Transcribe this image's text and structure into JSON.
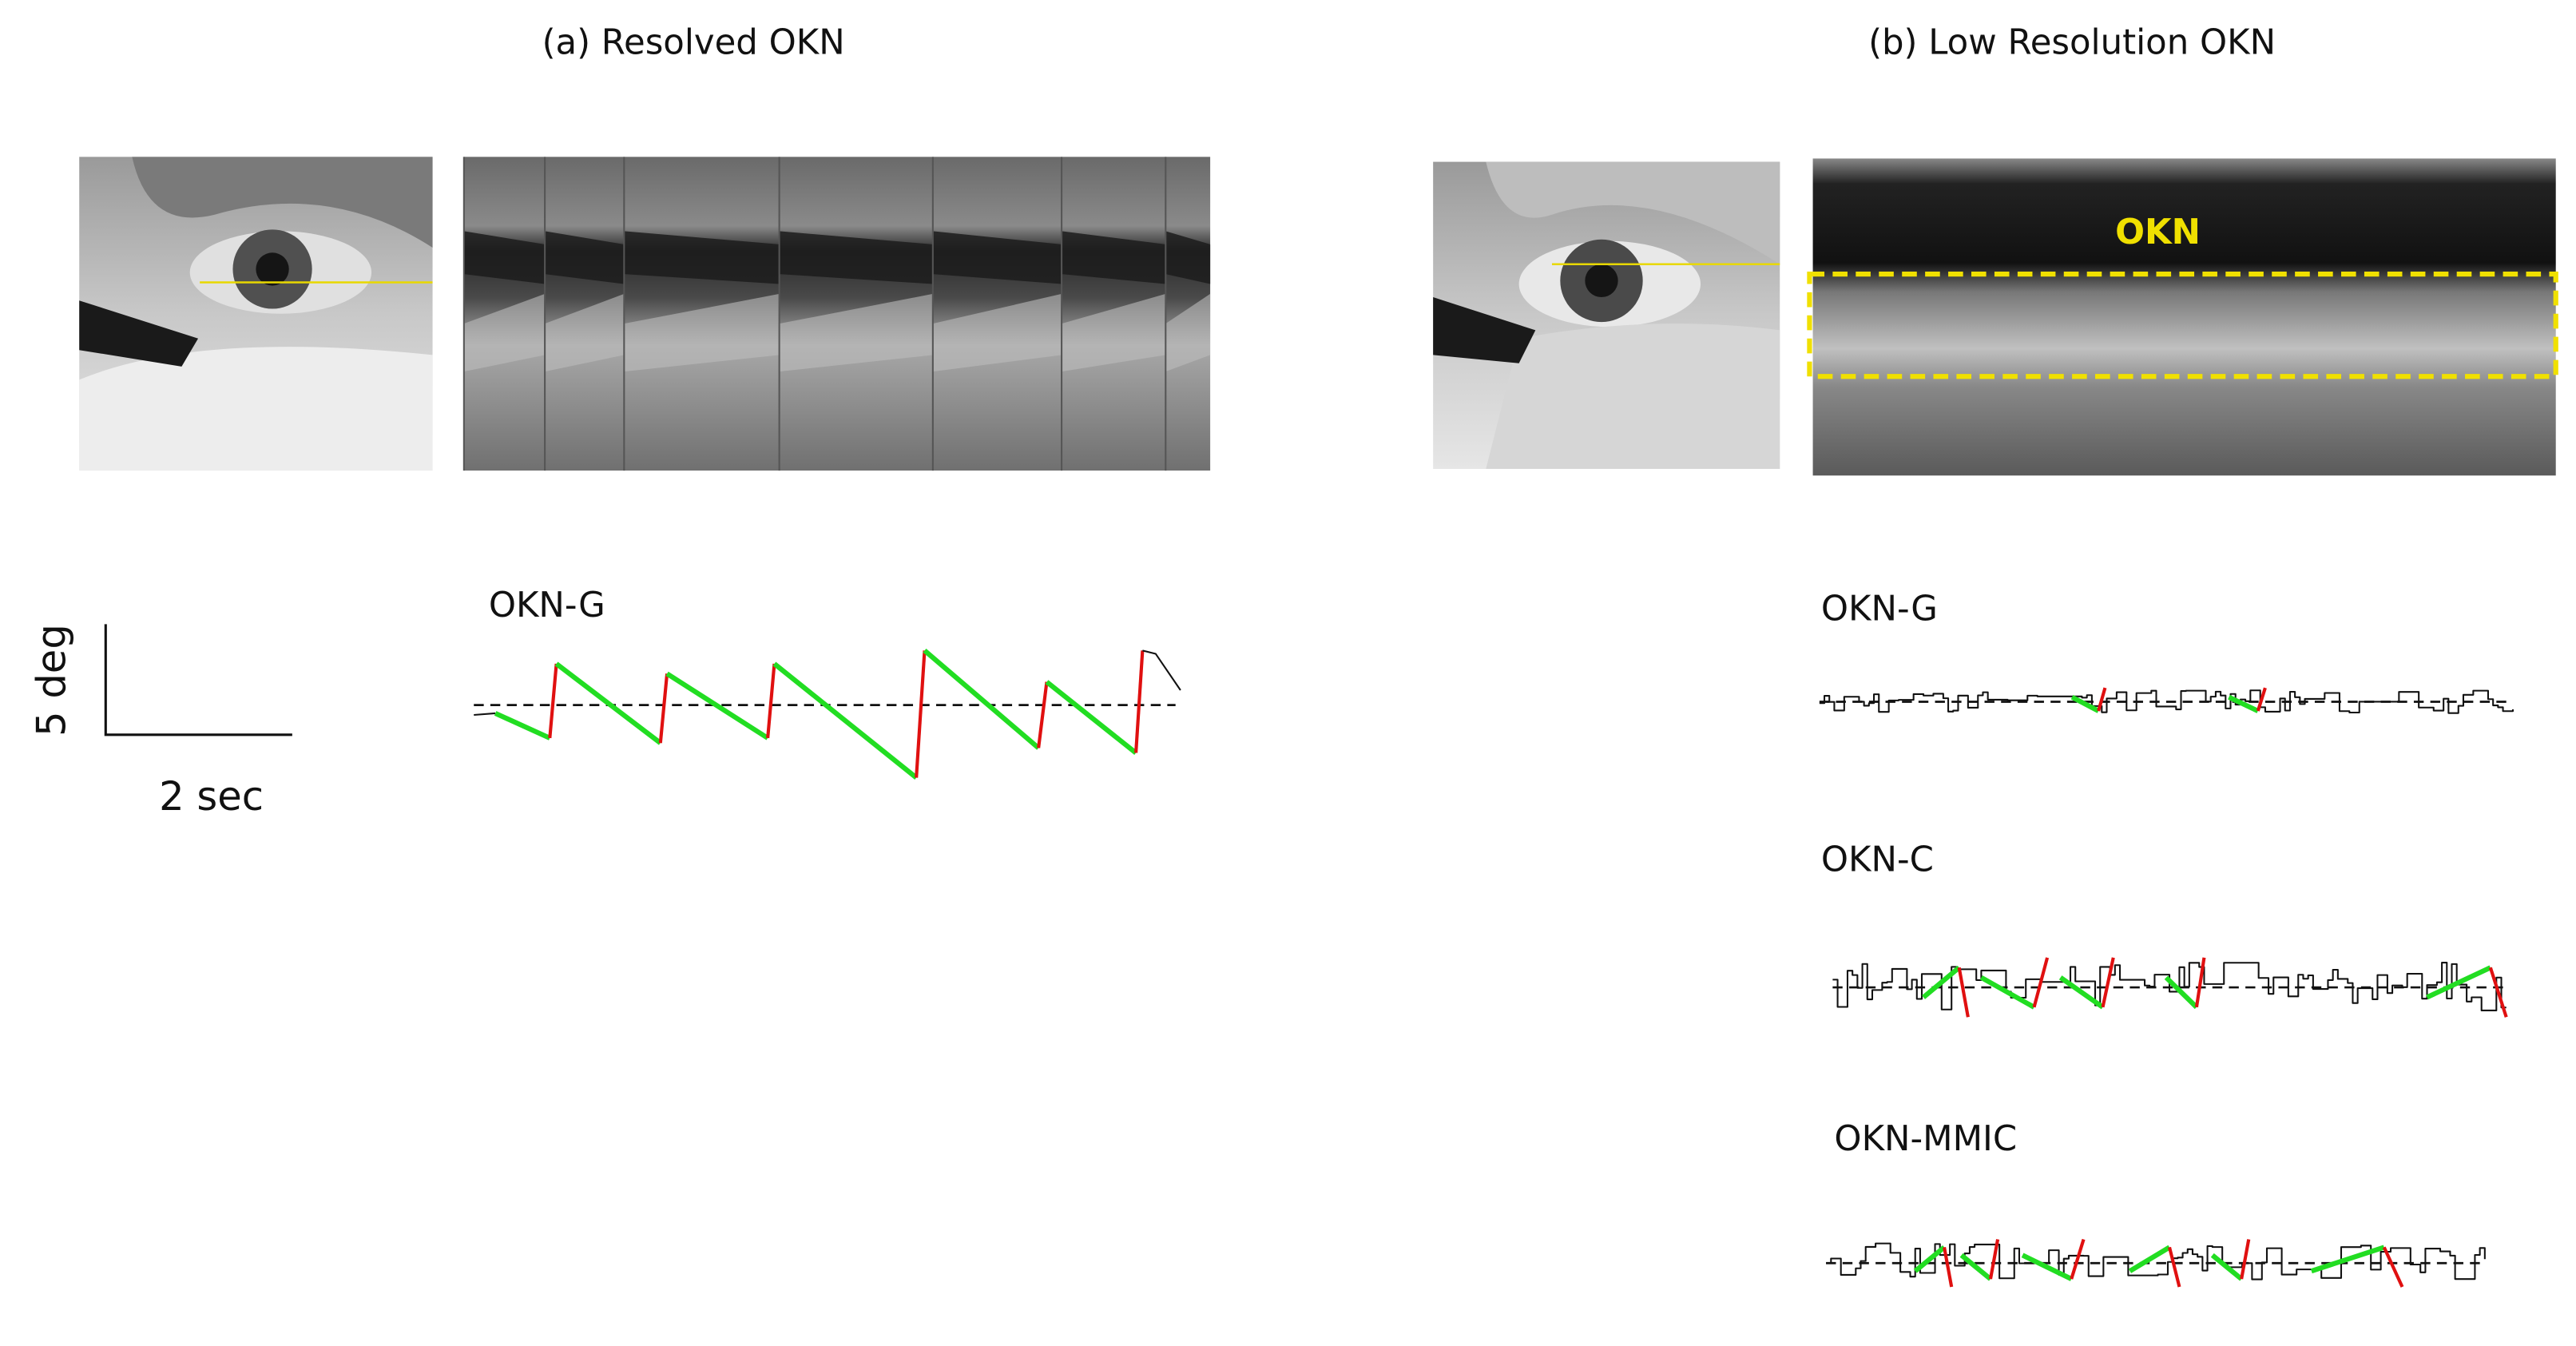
{
  "panels": [
    {
      "title": "(a) Resolved OKN",
      "traces": [
        {
          "label": "OKN-G"
        }
      ]
    },
    {
      "title": "(b) Low Resolution OKN",
      "overlay_label": "OKN",
      "traces": [
        {
          "label": "OKN-G"
        },
        {
          "label": "OKN-C"
        },
        {
          "label": "OKN-MMIC"
        }
      ]
    }
  ],
  "scale_bar": {
    "vertical": "5 deg",
    "horizontal": "2 sec"
  }
}
